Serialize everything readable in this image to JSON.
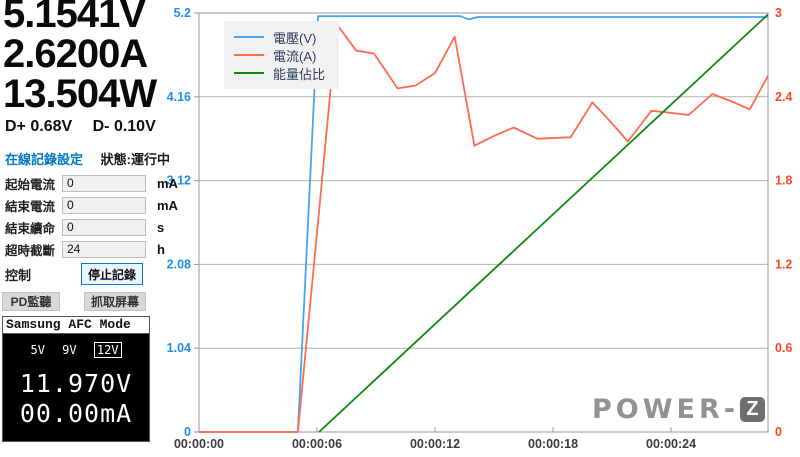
{
  "readings": {
    "voltage": "5.1541V",
    "current": "2.6200A",
    "power": "13.504W",
    "dplus": "D+ 0.68V",
    "dminus": "D- 0.10V"
  },
  "recording": {
    "title": "在線記錄設定",
    "status": "狀態:運行中",
    "fields": [
      {
        "label": "起始電流",
        "value": "0",
        "unit": "mA"
      },
      {
        "label": "結束電流",
        "value": "0",
        "unit": "mA"
      },
      {
        "label": "結束續命",
        "value": "0",
        "unit": "s"
      },
      {
        "label": "超時截斷",
        "value": "24",
        "unit": "h"
      }
    ],
    "control_label": "控制",
    "stop_button": "停止記錄",
    "pd_button": "PD監聽",
    "capture_button": "抓取屏幕"
  },
  "afc": {
    "title": "Samsung AFC Mode",
    "options": [
      "5V",
      "9V",
      "12V"
    ],
    "selected": "12V",
    "voltage": "11.970V",
    "current": "00.00mA"
  },
  "logo": {
    "text": "POWER-",
    "z": "Z"
  },
  "chart_data": {
    "type": "line",
    "title": "",
    "grid": "horizontal",
    "legend_position": "top-left",
    "x_axis": {
      "tick_labels": [
        "00:00:00",
        "00:00:06",
        "00:00:12",
        "00:00:18",
        "00:00:24"
      ],
      "tick_seconds": [
        0,
        6,
        12,
        18,
        24
      ],
      "range_seconds": [
        0,
        28.93
      ]
    },
    "y_left": {
      "ticks": [
        0,
        1.04,
        2.08,
        3.12,
        4.16,
        5.2
      ],
      "range": [
        0,
        5.2
      ],
      "color": "#1e8ff0"
    },
    "y_right": {
      "ticks": [
        0,
        0.6,
        1.2,
        1.8,
        2.4,
        3
      ],
      "range": [
        0,
        3
      ],
      "color": "#ff4526"
    },
    "series": [
      {
        "name": "電壓(V)",
        "color": "#47a4f0",
        "axis": "left",
        "points": [
          [
            0,
            0
          ],
          [
            5.03,
            0
          ],
          [
            6.05,
            5.16
          ],
          [
            13.3,
            5.16
          ],
          [
            13.7,
            5.12
          ],
          [
            14.2,
            5.15
          ],
          [
            28.93,
            5.15
          ]
        ]
      },
      {
        "name": "電流(A)",
        "color": "#ff6a50",
        "axis": "right",
        "points": [
          [
            0,
            0
          ],
          [
            5.03,
            0
          ],
          [
            6.05,
            1.5
          ],
          [
            7,
            2.92
          ],
          [
            8,
            2.73
          ],
          [
            8.9,
            2.71
          ],
          [
            10.1,
            2.46
          ],
          [
            11,
            2.48
          ],
          [
            12,
            2.57
          ],
          [
            13,
            2.83
          ],
          [
            14,
            2.05
          ],
          [
            15,
            2.12
          ],
          [
            16,
            2.18
          ],
          [
            17.2,
            2.1
          ],
          [
            18.9,
            2.11
          ],
          [
            20,
            2.36
          ],
          [
            21,
            2.21
          ],
          [
            21.8,
            2.08
          ],
          [
            23,
            2.3
          ],
          [
            23.7,
            2.29
          ],
          [
            24.9,
            2.27
          ],
          [
            26.1,
            2.42
          ],
          [
            27.2,
            2.36
          ],
          [
            28,
            2.31
          ],
          [
            28.93,
            2.55
          ]
        ]
      },
      {
        "name": "能量佔比",
        "color": "#0e8a10",
        "axis": "right",
        "points": [
          [
            6.1,
            0
          ],
          [
            28.93,
            2.99
          ]
        ]
      }
    ]
  }
}
